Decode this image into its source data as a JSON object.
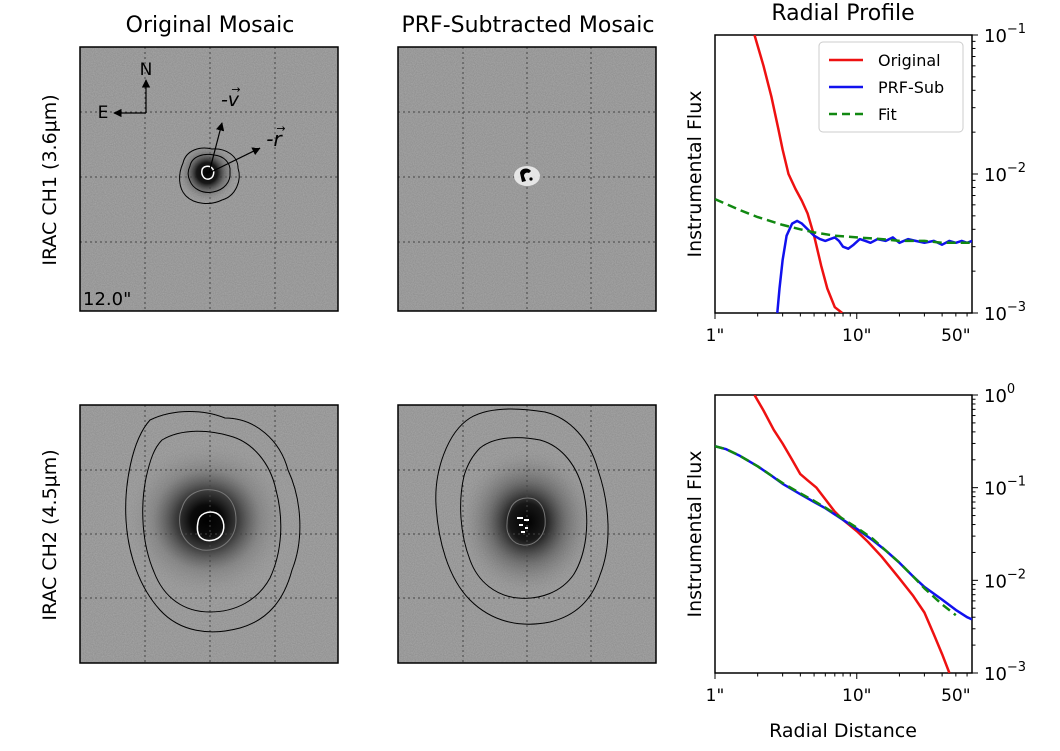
{
  "chart_data": [
    {
      "type": "image",
      "title": "Original Mosaic",
      "row_label": "IRAC CH1 (3.6μm)",
      "scale_label": "12.0\"",
      "compass": {
        "north": "N",
        "east": "E"
      },
      "vectors": {
        "velocity": "-v",
        "radius": "-r"
      }
    },
    {
      "type": "image",
      "title": "PRF-Subtracted Mosaic",
      "row_label": "IRAC CH1 (3.6μm)"
    },
    {
      "type": "line",
      "title": "Radial Profile",
      "xlabel": "",
      "ylabel": "Instrumental Flux",
      "xscale": "log",
      "yscale": "log",
      "xlim": [
        1,
        65
      ],
      "ylim": [
        0.001,
        0.1
      ],
      "xticks": [
        {
          "value": 1,
          "label": "1\""
        },
        {
          "value": 10,
          "label": "10\""
        },
        {
          "value": 50,
          "label": "50\""
        }
      ],
      "yticks": [
        {
          "value": 0.001,
          "base": "10",
          "exp": "−3"
        },
        {
          "value": 0.01,
          "base": "10",
          "exp": "−2"
        },
        {
          "value": 0.1,
          "base": "10",
          "exp": "−1"
        }
      ],
      "legend": {
        "position": "top-right"
      },
      "series": [
        {
          "name": "Original",
          "color": "#ee1111",
          "style": "solid",
          "x": [
            1.9,
            2.2,
            2.5,
            2.8,
            3.0,
            3.3,
            3.7,
            4.1,
            4.5,
            5.0,
            5.6,
            6.2,
            7.0,
            7.9
          ],
          "y": [
            0.1,
            0.06,
            0.036,
            0.021,
            0.015,
            0.01,
            0.0078,
            0.0064,
            0.0052,
            0.0036,
            0.0022,
            0.0015,
            0.0011,
            0.001
          ]
        },
        {
          "name": "PRF-Sub",
          "color": "#1111ee",
          "style": "solid",
          "x": [
            2.75,
            2.85,
            3.0,
            3.2,
            3.5,
            3.8,
            4.1,
            4.5,
            5.0,
            5.5,
            6.0,
            6.5,
            7.0,
            7.5,
            8.0,
            8.7,
            9.5,
            10.5,
            11.5,
            12.5,
            14,
            16,
            18,
            20,
            23,
            26,
            30,
            35,
            40,
            45,
            50,
            55,
            60,
            65
          ],
          "y": [
            0.001,
            0.0015,
            0.0024,
            0.0036,
            0.0044,
            0.0046,
            0.0044,
            0.004,
            0.0036,
            0.0034,
            0.0033,
            0.0034,
            0.0035,
            0.0033,
            0.003,
            0.0029,
            0.0031,
            0.0034,
            0.0033,
            0.0032,
            0.0034,
            0.0033,
            0.0035,
            0.0032,
            0.0034,
            0.0033,
            0.0032,
            0.0033,
            0.0031,
            0.0033,
            0.0032,
            0.0033,
            0.0032,
            0.0033
          ]
        },
        {
          "name": "Fit",
          "color": "#118811",
          "style": "dashed",
          "x": [
            1,
            1.5,
            2,
            3,
            4,
            5,
            7,
            10,
            15,
            20,
            30,
            40,
            50,
            65
          ],
          "y": [
            0.0066,
            0.0055,
            0.0049,
            0.0043,
            0.004,
            0.0038,
            0.0036,
            0.0035,
            0.0034,
            0.0033,
            0.0033,
            0.0032,
            0.0032,
            0.0032
          ]
        }
      ]
    },
    {
      "type": "image",
      "title": "",
      "row_label": "IRAC CH2 (4.5μm)"
    },
    {
      "type": "image",
      "title": "",
      "row_label": "IRAC CH2 (4.5μm)"
    },
    {
      "type": "line",
      "title": "",
      "xlabel": "Radial Distance",
      "ylabel": "Instrumental Flux",
      "xscale": "log",
      "yscale": "log",
      "xlim": [
        1,
        65
      ],
      "ylim": [
        0.001,
        1
      ],
      "xticks": [
        {
          "value": 1,
          "label": "1\""
        },
        {
          "value": 10,
          "label": "10\""
        },
        {
          "value": 50,
          "label": "50\""
        }
      ],
      "yticks": [
        {
          "value": 0.001,
          "base": "10",
          "exp": "−3"
        },
        {
          "value": 0.01,
          "base": "10",
          "exp": "−2"
        },
        {
          "value": 0.1,
          "base": "10",
          "exp": "−1"
        },
        {
          "value": 1,
          "base": "10",
          "exp": "0"
        }
      ],
      "series": [
        {
          "name": "Original",
          "color": "#ee1111",
          "style": "solid",
          "x": [
            1.9,
            2.2,
            2.6,
            3.0,
            3.5,
            4.0,
            4.5,
            5.2,
            6.0,
            7.0,
            8.0,
            10,
            12,
            15,
            20,
            25,
            30,
            35,
            40,
            45
          ],
          "y": [
            1.0,
            0.68,
            0.42,
            0.3,
            0.2,
            0.14,
            0.12,
            0.1,
            0.075,
            0.055,
            0.045,
            0.034,
            0.026,
            0.018,
            0.0105,
            0.0068,
            0.0045,
            0.0026,
            0.0016,
            0.001
          ]
        },
        {
          "name": "PRF-Sub",
          "color": "#1111ee",
          "style": "solid",
          "x": [
            1,
            1.2,
            1.5,
            2,
            2.5,
            3,
            4,
            5,
            6,
            8,
            10,
            13,
            16,
            20,
            25,
            30,
            40,
            50,
            60,
            65
          ],
          "y": [
            0.28,
            0.26,
            0.22,
            0.17,
            0.135,
            0.11,
            0.085,
            0.07,
            0.06,
            0.045,
            0.036,
            0.027,
            0.021,
            0.0155,
            0.011,
            0.0085,
            0.0062,
            0.0048,
            0.004,
            0.0038
          ]
        },
        {
          "name": "Fit",
          "color": "#118811",
          "style": "dashed",
          "x": [
            1,
            1.2,
            1.5,
            2,
            2.5,
            3,
            4,
            5,
            6,
            8,
            10,
            13,
            16,
            20,
            25,
            30,
            40,
            50
          ],
          "y": [
            0.28,
            0.26,
            0.22,
            0.17,
            0.135,
            0.112,
            0.087,
            0.072,
            0.061,
            0.046,
            0.037,
            0.028,
            0.021,
            0.0155,
            0.011,
            0.0082,
            0.0055,
            0.0042
          ]
        }
      ]
    }
  ]
}
